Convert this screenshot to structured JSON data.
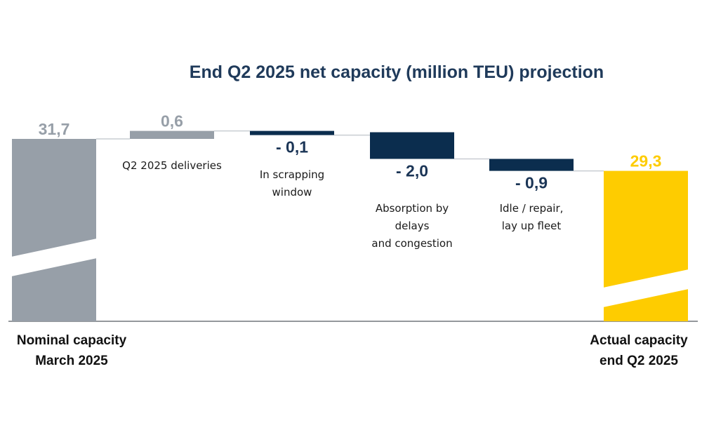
{
  "chart_data": {
    "type": "waterfall",
    "title": "End Q2 2025 net capacity (million TEU) projection",
    "steps": [
      {
        "label_lines": [
          "Nominal capacity",
          "March 2025"
        ],
        "value": 31.7,
        "display": "31,7",
        "kind": "total",
        "color": "#979fa8",
        "label_color": "#979fa8"
      },
      {
        "label_lines": [
          "Q2 2025 deliveries"
        ],
        "value": 0.6,
        "display": "0,6",
        "kind": "increase",
        "color": "#979fa8",
        "label_color": "#979fa8"
      },
      {
        "label_lines": [
          "In scrapping",
          "window"
        ],
        "value": -0.1,
        "display": "- 0,1",
        "kind": "decrease",
        "color": "#0b2d4e",
        "label_color": "#1b3556"
      },
      {
        "label_lines": [
          "Absorption by",
          "delays",
          "and congestion"
        ],
        "value": -2.0,
        "display": "- 2,0",
        "kind": "decrease",
        "color": "#0b2d4e",
        "label_color": "#1b3556"
      },
      {
        "label_lines": [
          "Idle / repair,",
          "lay up fleet"
        ],
        "value": -0.9,
        "display": "- 0,9",
        "kind": "decrease",
        "color": "#0b2d4e",
        "label_color": "#1b3556"
      },
      {
        "label_lines": [
          "Actual capacity",
          "end Q2 2025"
        ],
        "value": 29.3,
        "display": "29,3",
        "kind": "total",
        "color": "#fecc00",
        "label_color": "#fecc00"
      }
    ],
    "axis_break": true
  }
}
